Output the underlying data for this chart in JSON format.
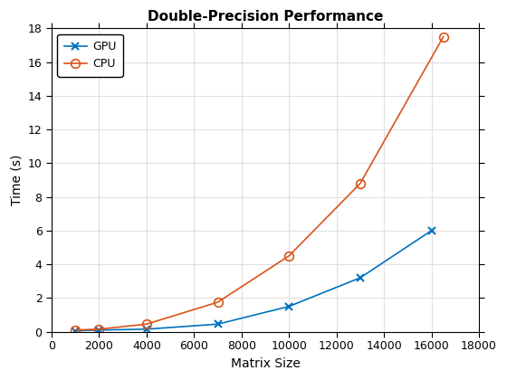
{
  "title": "Double-Precision Performance",
  "xlabel": "Matrix Size",
  "ylabel": "Time (s)",
  "gpu": {
    "x": [
      1000,
      2000,
      4000,
      7000,
      10000,
      13000,
      16000
    ],
    "y": [
      0.05,
      0.1,
      0.15,
      0.45,
      1.5,
      3.2,
      6.0
    ],
    "color": "#0072BD",
    "marker": "x",
    "label": "GPU"
  },
  "cpu": {
    "x": [
      1000,
      2000,
      4000,
      7000,
      10000,
      13000,
      16500
    ],
    "y": [
      0.1,
      0.15,
      0.45,
      1.75,
      4.5,
      8.8,
      17.5
    ],
    "color": "#D95319",
    "marker": "o",
    "label": "CPU"
  },
  "xlim": [
    0,
    18000
  ],
  "ylim": [
    0,
    18
  ],
  "xticks": [
    0,
    2000,
    4000,
    6000,
    8000,
    10000,
    12000,
    14000,
    16000,
    18000
  ],
  "yticks": [
    0,
    2,
    4,
    6,
    8,
    10,
    12,
    14,
    16,
    18
  ],
  "bg_color": "#ffffff",
  "grid_color": "#e0e0e0"
}
